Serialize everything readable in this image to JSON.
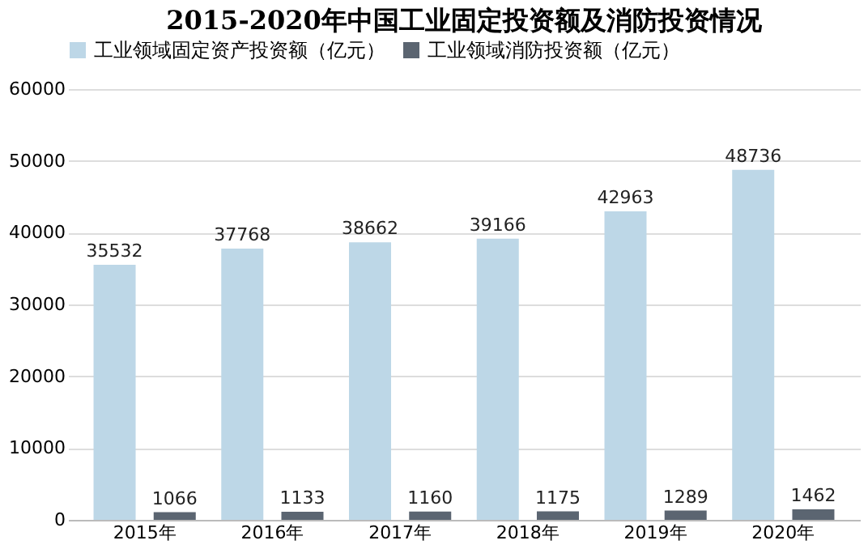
{
  "chart_data": {
    "type": "bar",
    "title": "2015-2020年中国工业固定投资额及消防投资情况",
    "categories": [
      "2015年",
      "2016年",
      "2017年",
      "2018年",
      "2019年",
      "2020年"
    ],
    "series": [
      {
        "name": "工业领域固定资产投资额（亿元）",
        "color": "#bdd7e7",
        "values": [
          35532,
          37768,
          38662,
          39166,
          42963,
          48736
        ]
      },
      {
        "name": "工业领域消防投资额（亿元）",
        "color": "#5b6571",
        "values": [
          1066,
          1133,
          1160,
          1175,
          1289,
          1462
        ]
      }
    ],
    "ylim": [
      0,
      60000
    ],
    "yticks": [
      0,
      10000,
      20000,
      30000,
      40000,
      50000,
      60000
    ],
    "grid": "y",
    "legend": "top left",
    "data_labels": true
  }
}
